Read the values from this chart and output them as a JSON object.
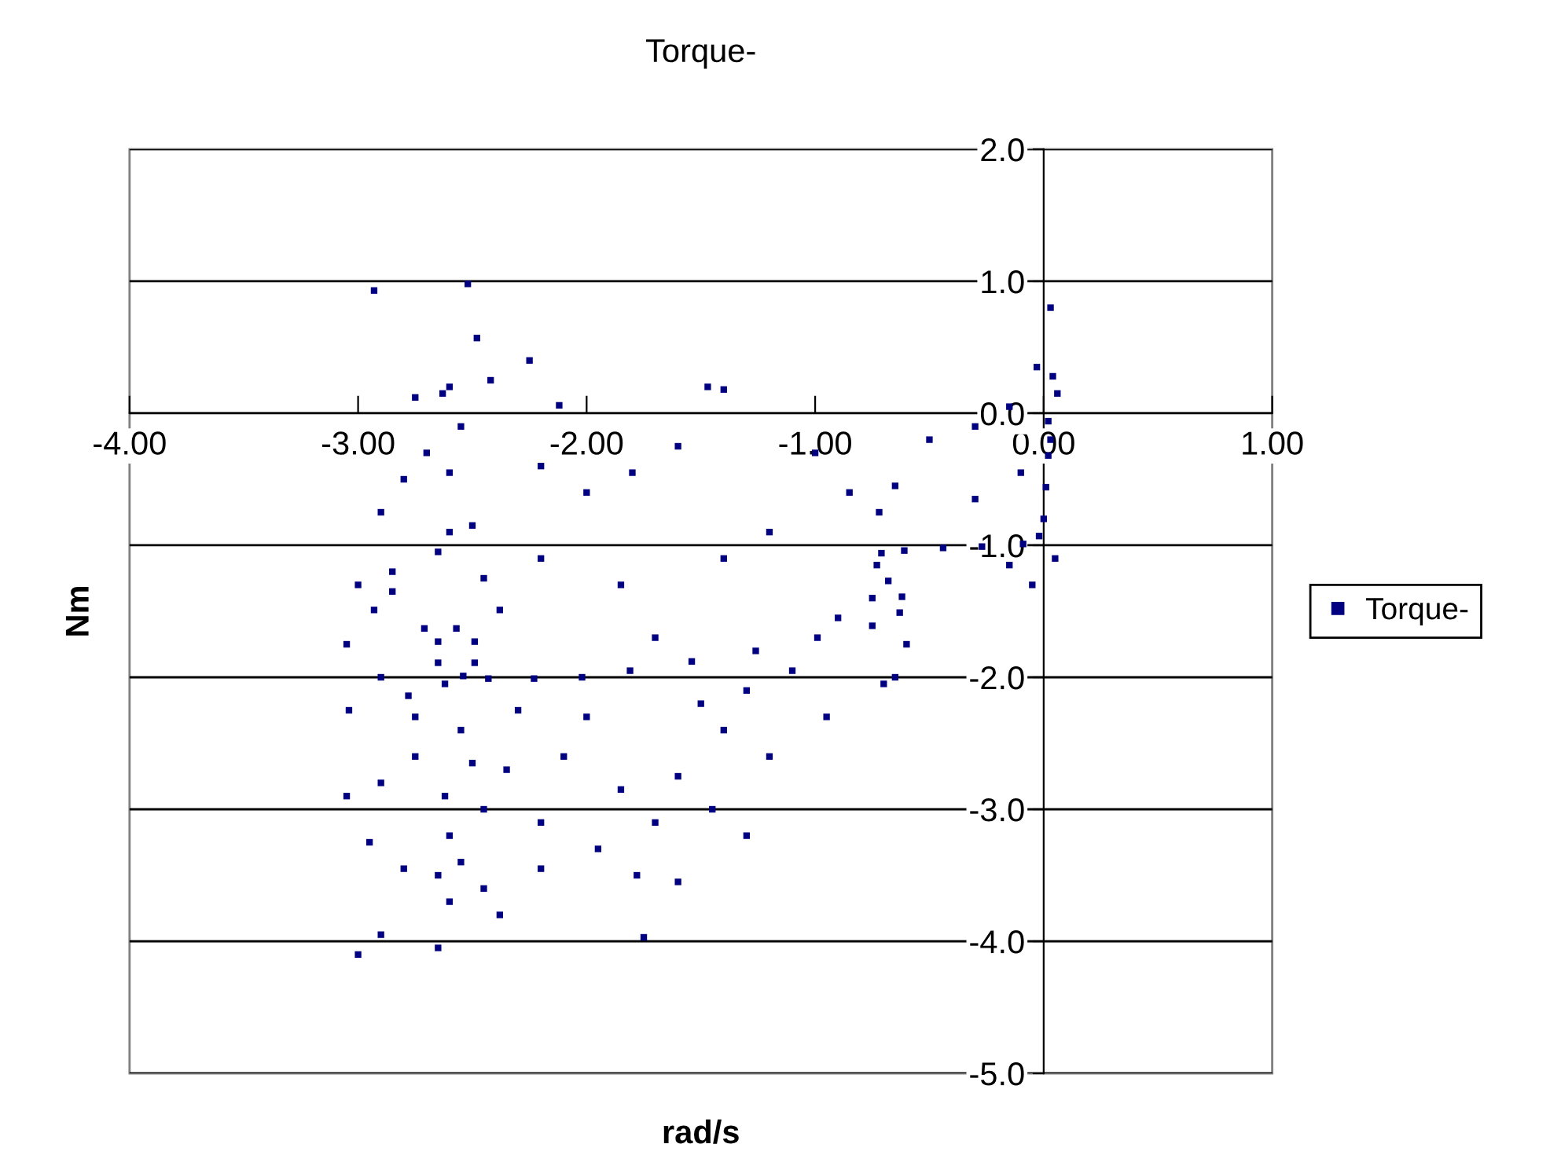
{
  "chart_data": {
    "type": "scatter",
    "title": "Torque-",
    "xlabel": "rad/s",
    "ylabel": "Nm",
    "xlim": [
      -4.0,
      1.0
    ],
    "xticks": [
      {
        "value": -4,
        "label": "-4.00"
      },
      {
        "value": -3,
        "label": "-3.00"
      },
      {
        "value": -2,
        "label": "-2.00"
      },
      {
        "value": -1,
        "label": "-1.00"
      },
      {
        "value": 0,
        "label": "0.00"
      },
      {
        "value": 1,
        "label": "1.00"
      }
    ],
    "ylim": [
      -5.0,
      2.0
    ],
    "yticks": [
      {
        "value": -5,
        "label": "-5.0"
      },
      {
        "value": -4,
        "label": "-4.0"
      },
      {
        "value": -3,
        "label": "-3.0"
      },
      {
        "value": -2,
        "label": "-2.0"
      },
      {
        "value": -1,
        "label": "-1.0"
      },
      {
        "value": 0,
        "label": "0.0"
      },
      {
        "value": 1,
        "label": "1.0"
      },
      {
        "value": 2,
        "label": "2.0"
      }
    ],
    "grid": "y",
    "legend": "right",
    "marker": "square",
    "series": [
      {
        "name": "Torque-",
        "color": "#000080",
        "x": [
          0.02,
          0.02,
          0.01,
          0.0,
          -0.02,
          -0.09,
          -0.27,
          -0.44,
          -0.61,
          -0.71,
          -0.73,
          -0.68,
          -0.62,
          -0.63,
          -0.75,
          -0.99,
          -1.26,
          -1.54,
          -1.81,
          -2.02,
          -2.23,
          -2.43,
          -2.54,
          -2.57,
          -2.49,
          -2.49,
          -2.65,
          -2.65,
          -2.38,
          -2.93,
          -2.71,
          -2.62,
          -2.78,
          -3.04,
          -2.93,
          -2.52,
          -2.48,
          -2.25,
          -2.6,
          -2.63,
          -2.75,
          -2.42,
          -2.12,
          -1.47,
          -1.4,
          -0.15,
          0.03,
          -0.03,
          0.04,
          0.06,
          -0.3,
          -0.5,
          -1.0,
          -1.6,
          -1.8,
          -2.0,
          -2.2,
          -2.55,
          -2.7,
          -2.8,
          -2.9,
          -2.6,
          -2.5,
          -2.65,
          -2.85,
          -3.0,
          -2.45,
          -2.2,
          -1.85,
          -1.4,
          -1.2,
          -0.85,
          -0.72,
          -0.65,
          -0.3,
          -0.1,
          -0.75,
          -0.6,
          -0.65,
          -0.9,
          -1.1,
          -1.3,
          -1.5,
          -1.7,
          -2.0,
          -2.3,
          -2.55,
          -2.75,
          -2.9,
          -2.62,
          -2.5,
          -2.35,
          -2.1,
          -1.85,
          -1.6,
          -1.4,
          -1.45,
          -1.3,
          -1.2,
          -0.95,
          -1.7,
          -1.95,
          -2.2,
          -2.45,
          -2.6,
          -2.65,
          -2.55,
          -2.45,
          -2.8,
          -2.95,
          -2.6,
          -2.38,
          -2.2,
          -1.78,
          -1.6,
          -2.65,
          -2.9,
          -3.0,
          -1.75,
          -3.05,
          -3.05,
          -2.9,
          -2.75,
          -2.85,
          -2.6,
          -0.7,
          -0.05,
          0.05,
          -0.15,
          0.03
        ],
        "values": [
          -0.06,
          -0.32,
          -0.56,
          -0.8,
          -0.93,
          -0.99,
          -1.01,
          -1.02,
          -1.04,
          -1.06,
          -1.15,
          -1.27,
          -1.39,
          -1.51,
          -1.61,
          -1.7,
          -1.8,
          -1.88,
          -1.95,
          -2.0,
          -2.01,
          -2.01,
          -1.99,
          -1.63,
          -1.73,
          -1.89,
          -1.89,
          -1.73,
          -1.49,
          -1.49,
          -1.63,
          -2.05,
          -2.14,
          -2.25,
          0.93,
          0.98,
          0.57,
          0.4,
          0.2,
          0.15,
          0.12,
          0.25,
          0.06,
          0.2,
          0.18,
          0.05,
          0.8,
          0.35,
          0.28,
          0.15,
          -0.1,
          -0.2,
          -0.3,
          -0.25,
          -0.45,
          -0.6,
          -0.4,
          -0.1,
          -0.3,
          -0.5,
          -0.75,
          -0.45,
          -0.85,
          -1.05,
          -1.2,
          -1.3,
          -1.25,
          -1.1,
          -1.3,
          -1.1,
          -0.9,
          -0.6,
          -0.75,
          -0.55,
          -0.65,
          -0.45,
          -1.4,
          -1.75,
          -2.0,
          -1.55,
          -1.95,
          -2.1,
          -2.2,
          -1.7,
          -2.3,
          -2.25,
          -2.4,
          -2.6,
          -2.8,
          -2.9,
          -2.65,
          -2.7,
          -2.6,
          -2.85,
          -2.75,
          -2.4,
          -3.0,
          -3.2,
          -2.6,
          -2.3,
          -3.1,
          -3.3,
          -3.1,
          -3.0,
          -3.2,
          -3.5,
          -3.4,
          -3.6,
          -3.45,
          -3.25,
          -3.7,
          -3.8,
          -3.45,
          -3.5,
          -3.55,
          -4.05,
          -3.95,
          -4.1,
          -3.97,
          -2.9,
          -1.75,
          -2.0,
          -2.3,
          -1.35,
          -0.9,
          -2.05,
          -1.3,
          -1.1,
          -1.15,
          -0.2
        ]
      }
    ]
  }
}
